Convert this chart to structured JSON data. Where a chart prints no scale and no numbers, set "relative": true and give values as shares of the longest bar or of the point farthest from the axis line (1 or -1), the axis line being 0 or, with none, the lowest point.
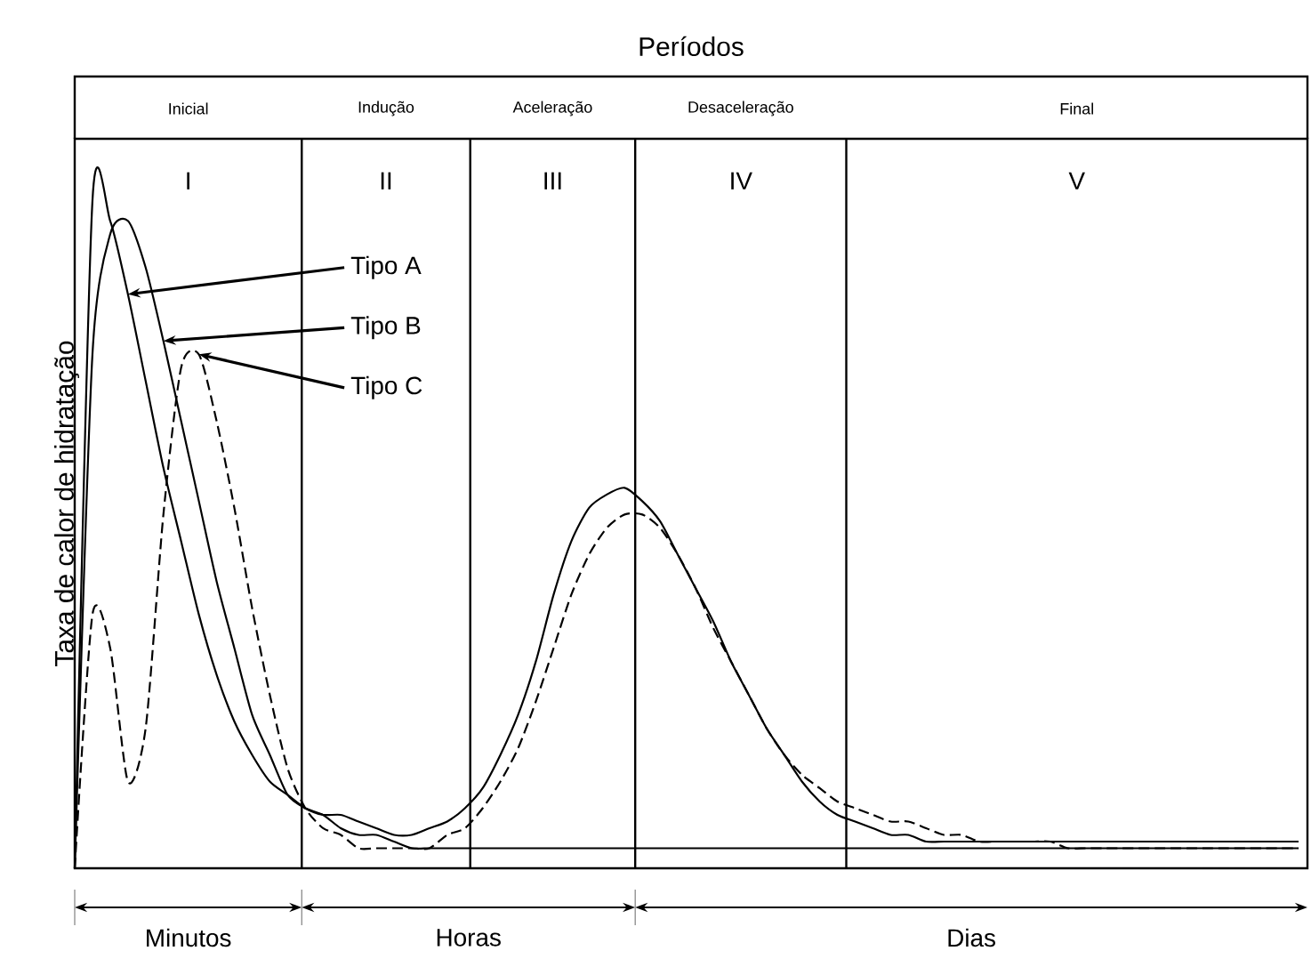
{
  "chart_data": {
    "type": "line",
    "relative": true,
    "title": "Períodos",
    "ylabel": "Taxa de calor de hidratação",
    "categories": [
      null,
      null,
      null,
      null,
      null,
      null,
      null,
      null,
      null,
      null,
      null,
      null,
      null,
      null,
      null,
      null,
      null,
      null,
      null,
      null,
      null,
      null,
      null,
      null,
      null,
      null,
      null,
      null,
      null,
      null,
      null,
      null,
      null,
      null,
      null,
      null,
      null,
      null,
      null,
      null,
      null,
      null,
      null,
      null,
      null,
      null,
      null,
      null,
      null,
      null,
      null,
      null,
      null,
      null,
      null,
      null,
      null,
      null,
      null,
      null,
      null,
      null,
      null,
      null,
      null,
      null,
      null,
      null,
      null,
      null
    ],
    "series": [
      {
        "color": "#000000",
        "line_style": "solid",
        "values": [
          0,
          1.0,
          0.97,
          0.86,
          0.73,
          0.6,
          0.49,
          0.38,
          0.29,
          0.22,
          0.17,
          0.13,
          0.11,
          0.09,
          0.08,
          0.06,
          0.05,
          0.05,
          0.04,
          0.03,
          0.03,
          0.03,
          0.03,
          0.03,
          0.03,
          0.03,
          0.03,
          0.03,
          0.03,
          0.03,
          0.03,
          0.03,
          0.03,
          0.03,
          0.03,
          0.03,
          0.03,
          0.03,
          0.03,
          0.03,
          0.03,
          0.03,
          0.03,
          0.03,
          0.03,
          0.03,
          0.03,
          0.03,
          0.03,
          0.03,
          0.03,
          0.03,
          0.03,
          0.03,
          0.03,
          0.03,
          0.03,
          0.03,
          0.03,
          0.03,
          0.03,
          0.03,
          0.03,
          0.03,
          0.03,
          0.03,
          0.03,
          0.03,
          0.03,
          0.03
        ]
      },
      {
        "color": "#000000",
        "line_style": "solid",
        "values": [
          0,
          0.77,
          0.95,
          0.97,
          0.9,
          0.79,
          0.67,
          0.55,
          0.43,
          0.33,
          0.23,
          0.17,
          0.11,
          0.09,
          0.08,
          0.08,
          0.07,
          0.06,
          0.05,
          0.05,
          0.06,
          0.07,
          0.09,
          0.12,
          0.17,
          0.23,
          0.31,
          0.41,
          0.49,
          0.54,
          0.56,
          0.57,
          0.55,
          0.52,
          0.47,
          0.42,
          0.37,
          0.31,
          0.26,
          0.21,
          0.17,
          0.13,
          0.1,
          0.08,
          0.07,
          0.06,
          0.05,
          0.05,
          0.04,
          0.04,
          0.04,
          0.04,
          0.04,
          0.04,
          0.04,
          0.04,
          0.04,
          0.04,
          0.04,
          0.04,
          0.04,
          0.04,
          0.04,
          0.04,
          0.04,
          0.04,
          0.04,
          0.04,
          0.04,
          0.04
        ]
      },
      {
        "color": "#000000",
        "line_style": "dashed",
        "values": [
          0,
          0.38,
          0.33,
          0.13,
          0.21,
          0.53,
          0.75,
          0.77,
          0.67,
          0.54,
          0.39,
          0.26,
          0.15,
          0.09,
          0.06,
          0.05,
          0.03,
          0.03,
          0.03,
          0.03,
          0.03,
          0.05,
          0.06,
          0.09,
          0.13,
          0.18,
          0.25,
          0.33,
          0.41,
          0.47,
          0.51,
          0.53,
          0.53,
          0.51,
          0.47,
          0.42,
          0.36,
          0.31,
          0.26,
          0.21,
          0.17,
          0.14,
          0.12,
          0.1,
          0.09,
          0.08,
          0.07,
          0.07,
          0.06,
          0.05,
          0.05,
          0.04,
          0.04,
          0.04,
          0.04,
          0.04,
          0.03,
          0.03,
          0.03,
          0.03,
          0.03,
          0.03,
          0.03,
          0.03,
          0.03,
          0.03,
          0.03,
          0.03,
          0.03,
          0.03
        ]
      }
    ],
    "annotations": [
      "Inicial",
      "Indução",
      "Aceleração",
      "Desaceleração",
      "Final",
      "I",
      "II",
      "III",
      "IV",
      "V",
      "Minutos",
      "Horas",
      "Dias",
      "Tipo A",
      "Tipo B",
      "Tipo C"
    ]
  }
}
